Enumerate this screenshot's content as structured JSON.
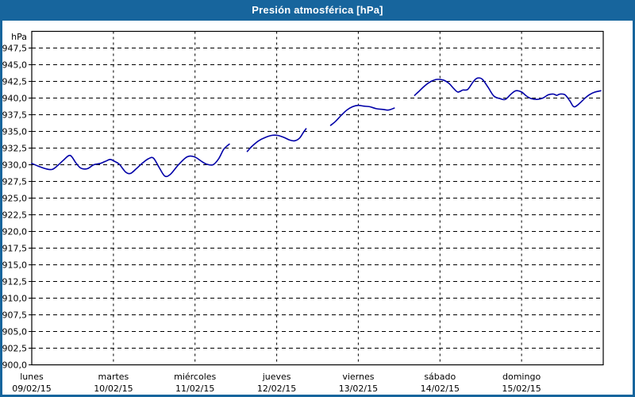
{
  "window": {
    "title": "Presión atmosférica [hPa]"
  },
  "colors": {
    "titlebar_bg": "#17659D",
    "window_border": "#17659D",
    "title_text": "#FFFFFF",
    "plot_bg": "#FFFFFF",
    "grid": "#000000",
    "axis": "#000000",
    "label_text": "#000000",
    "line": "#0000A8"
  },
  "chart_data": {
    "type": "line",
    "title": "Presión atmosférica [hPa]",
    "y_unit_label": "hPa",
    "ylim": [
      900,
      950
    ],
    "y_tick_step": 2.5,
    "y_tick_labels": [
      "900,0",
      "902,5",
      "905,0",
      "907,5",
      "910,0",
      "912,5",
      "915,0",
      "917,5",
      "920,0",
      "922,5",
      "925,0",
      "927,5",
      "930,0",
      "932,5",
      "935,0",
      "937,5",
      "940,0",
      "942,5",
      "945,0",
      "947,5"
    ],
    "xlim_days": [
      0,
      7
    ],
    "grid": "dashed",
    "legend": "none",
    "x_axis_days": [
      {
        "name": "lunes",
        "date": "09/02/15"
      },
      {
        "name": "martes",
        "date": "10/02/15"
      },
      {
        "name": "miércoles",
        "date": "11/02/15"
      },
      {
        "name": "jueves",
        "date": "12/02/15"
      },
      {
        "name": "viernes",
        "date": "13/02/15"
      },
      {
        "name": "sábado",
        "date": "14/02/15"
      },
      {
        "name": "domingo",
        "date": "15/02/15"
      }
    ],
    "series": [
      {
        "name": "Presión atmosférica",
        "unit": "hPa",
        "color": "#0000A8",
        "x_unit": "days_since_2015-02-09",
        "segments": [
          [
            [
              0.0,
              930.2
            ],
            [
              0.08,
              929.8
            ],
            [
              0.17,
              929.4
            ],
            [
              0.25,
              929.3
            ],
            [
              0.32,
              929.9
            ],
            [
              0.39,
              930.7
            ],
            [
              0.47,
              931.4
            ],
            [
              0.54,
              930.3
            ],
            [
              0.6,
              929.5
            ],
            [
              0.68,
              929.4
            ],
            [
              0.76,
              930.0
            ],
            [
              0.84,
              930.2
            ],
            [
              0.9,
              930.5
            ],
            [
              0.96,
              930.8
            ],
            [
              1.0,
              930.6
            ],
            [
              1.07,
              930.1
            ],
            [
              1.15,
              928.9
            ],
            [
              1.21,
              928.7
            ],
            [
              1.28,
              929.4
            ],
            [
              1.36,
              930.3
            ],
            [
              1.43,
              930.9
            ],
            [
              1.49,
              931.0
            ],
            [
              1.56,
              929.6
            ],
            [
              1.63,
              928.3
            ],
            [
              1.7,
              928.6
            ],
            [
              1.79,
              929.9
            ],
            [
              1.88,
              931.0
            ],
            [
              1.94,
              931.3
            ],
            [
              2.01,
              931.1
            ],
            [
              2.07,
              930.6
            ],
            [
              2.14,
              930.1
            ],
            [
              2.22,
              930.0
            ],
            [
              2.29,
              930.9
            ],
            [
              2.35,
              932.3
            ],
            [
              2.4,
              932.9
            ],
            [
              2.42,
              933.1
            ]
          ],
          [
            [
              2.64,
              932.0
            ],
            [
              2.7,
              932.8
            ],
            [
              2.78,
              933.6
            ],
            [
              2.86,
              934.1
            ],
            [
              2.94,
              934.4
            ],
            [
              3.01,
              934.4
            ],
            [
              3.09,
              934.1
            ],
            [
              3.16,
              933.7
            ],
            [
              3.22,
              933.6
            ],
            [
              3.28,
              934.0
            ],
            [
              3.33,
              934.9
            ],
            [
              3.36,
              935.4
            ]
          ],
          [
            [
              3.66,
              935.9
            ],
            [
              3.72,
              936.5
            ],
            [
              3.79,
              937.4
            ],
            [
              3.86,
              938.2
            ],
            [
              3.93,
              938.7
            ],
            [
              4.0,
              938.9
            ],
            [
              4.06,
              938.8
            ],
            [
              4.14,
              938.7
            ],
            [
              4.22,
              938.4
            ],
            [
              4.3,
              938.3
            ],
            [
              4.37,
              938.2
            ],
            [
              4.44,
              938.5
            ]
          ],
          [
            [
              4.69,
              940.4
            ],
            [
              4.75,
              941.1
            ],
            [
              4.82,
              941.9
            ],
            [
              4.89,
              942.5
            ],
            [
              4.96,
              942.8
            ],
            [
              5.04,
              942.7
            ],
            [
              5.11,
              942.2
            ],
            [
              5.17,
              941.4
            ],
            [
              5.22,
              940.9
            ],
            [
              5.28,
              941.2
            ],
            [
              5.34,
              941.3
            ],
            [
              5.41,
              942.5
            ],
            [
              5.46,
              943.0
            ],
            [
              5.52,
              942.8
            ],
            [
              5.59,
              941.6
            ],
            [
              5.66,
              940.3
            ],
            [
              5.74,
              939.9
            ],
            [
              5.8,
              939.8
            ],
            [
              5.87,
              940.6
            ],
            [
              5.93,
              941.1
            ],
            [
              6.0,
              940.9
            ],
            [
              6.06,
              940.3
            ],
            [
              6.12,
              939.9
            ],
            [
              6.19,
              939.8
            ],
            [
              6.26,
              940.0
            ],
            [
              6.33,
              940.5
            ],
            [
              6.39,
              940.6
            ],
            [
              6.43,
              940.4
            ],
            [
              6.47,
              940.6
            ],
            [
              6.53,
              940.5
            ],
            [
              6.59,
              939.6
            ],
            [
              6.64,
              938.7
            ],
            [
              6.7,
              939.1
            ],
            [
              6.77,
              939.9
            ],
            [
              6.83,
              940.5
            ],
            [
              6.9,
              940.9
            ],
            [
              6.97,
              941.1
            ]
          ]
        ]
      }
    ]
  }
}
